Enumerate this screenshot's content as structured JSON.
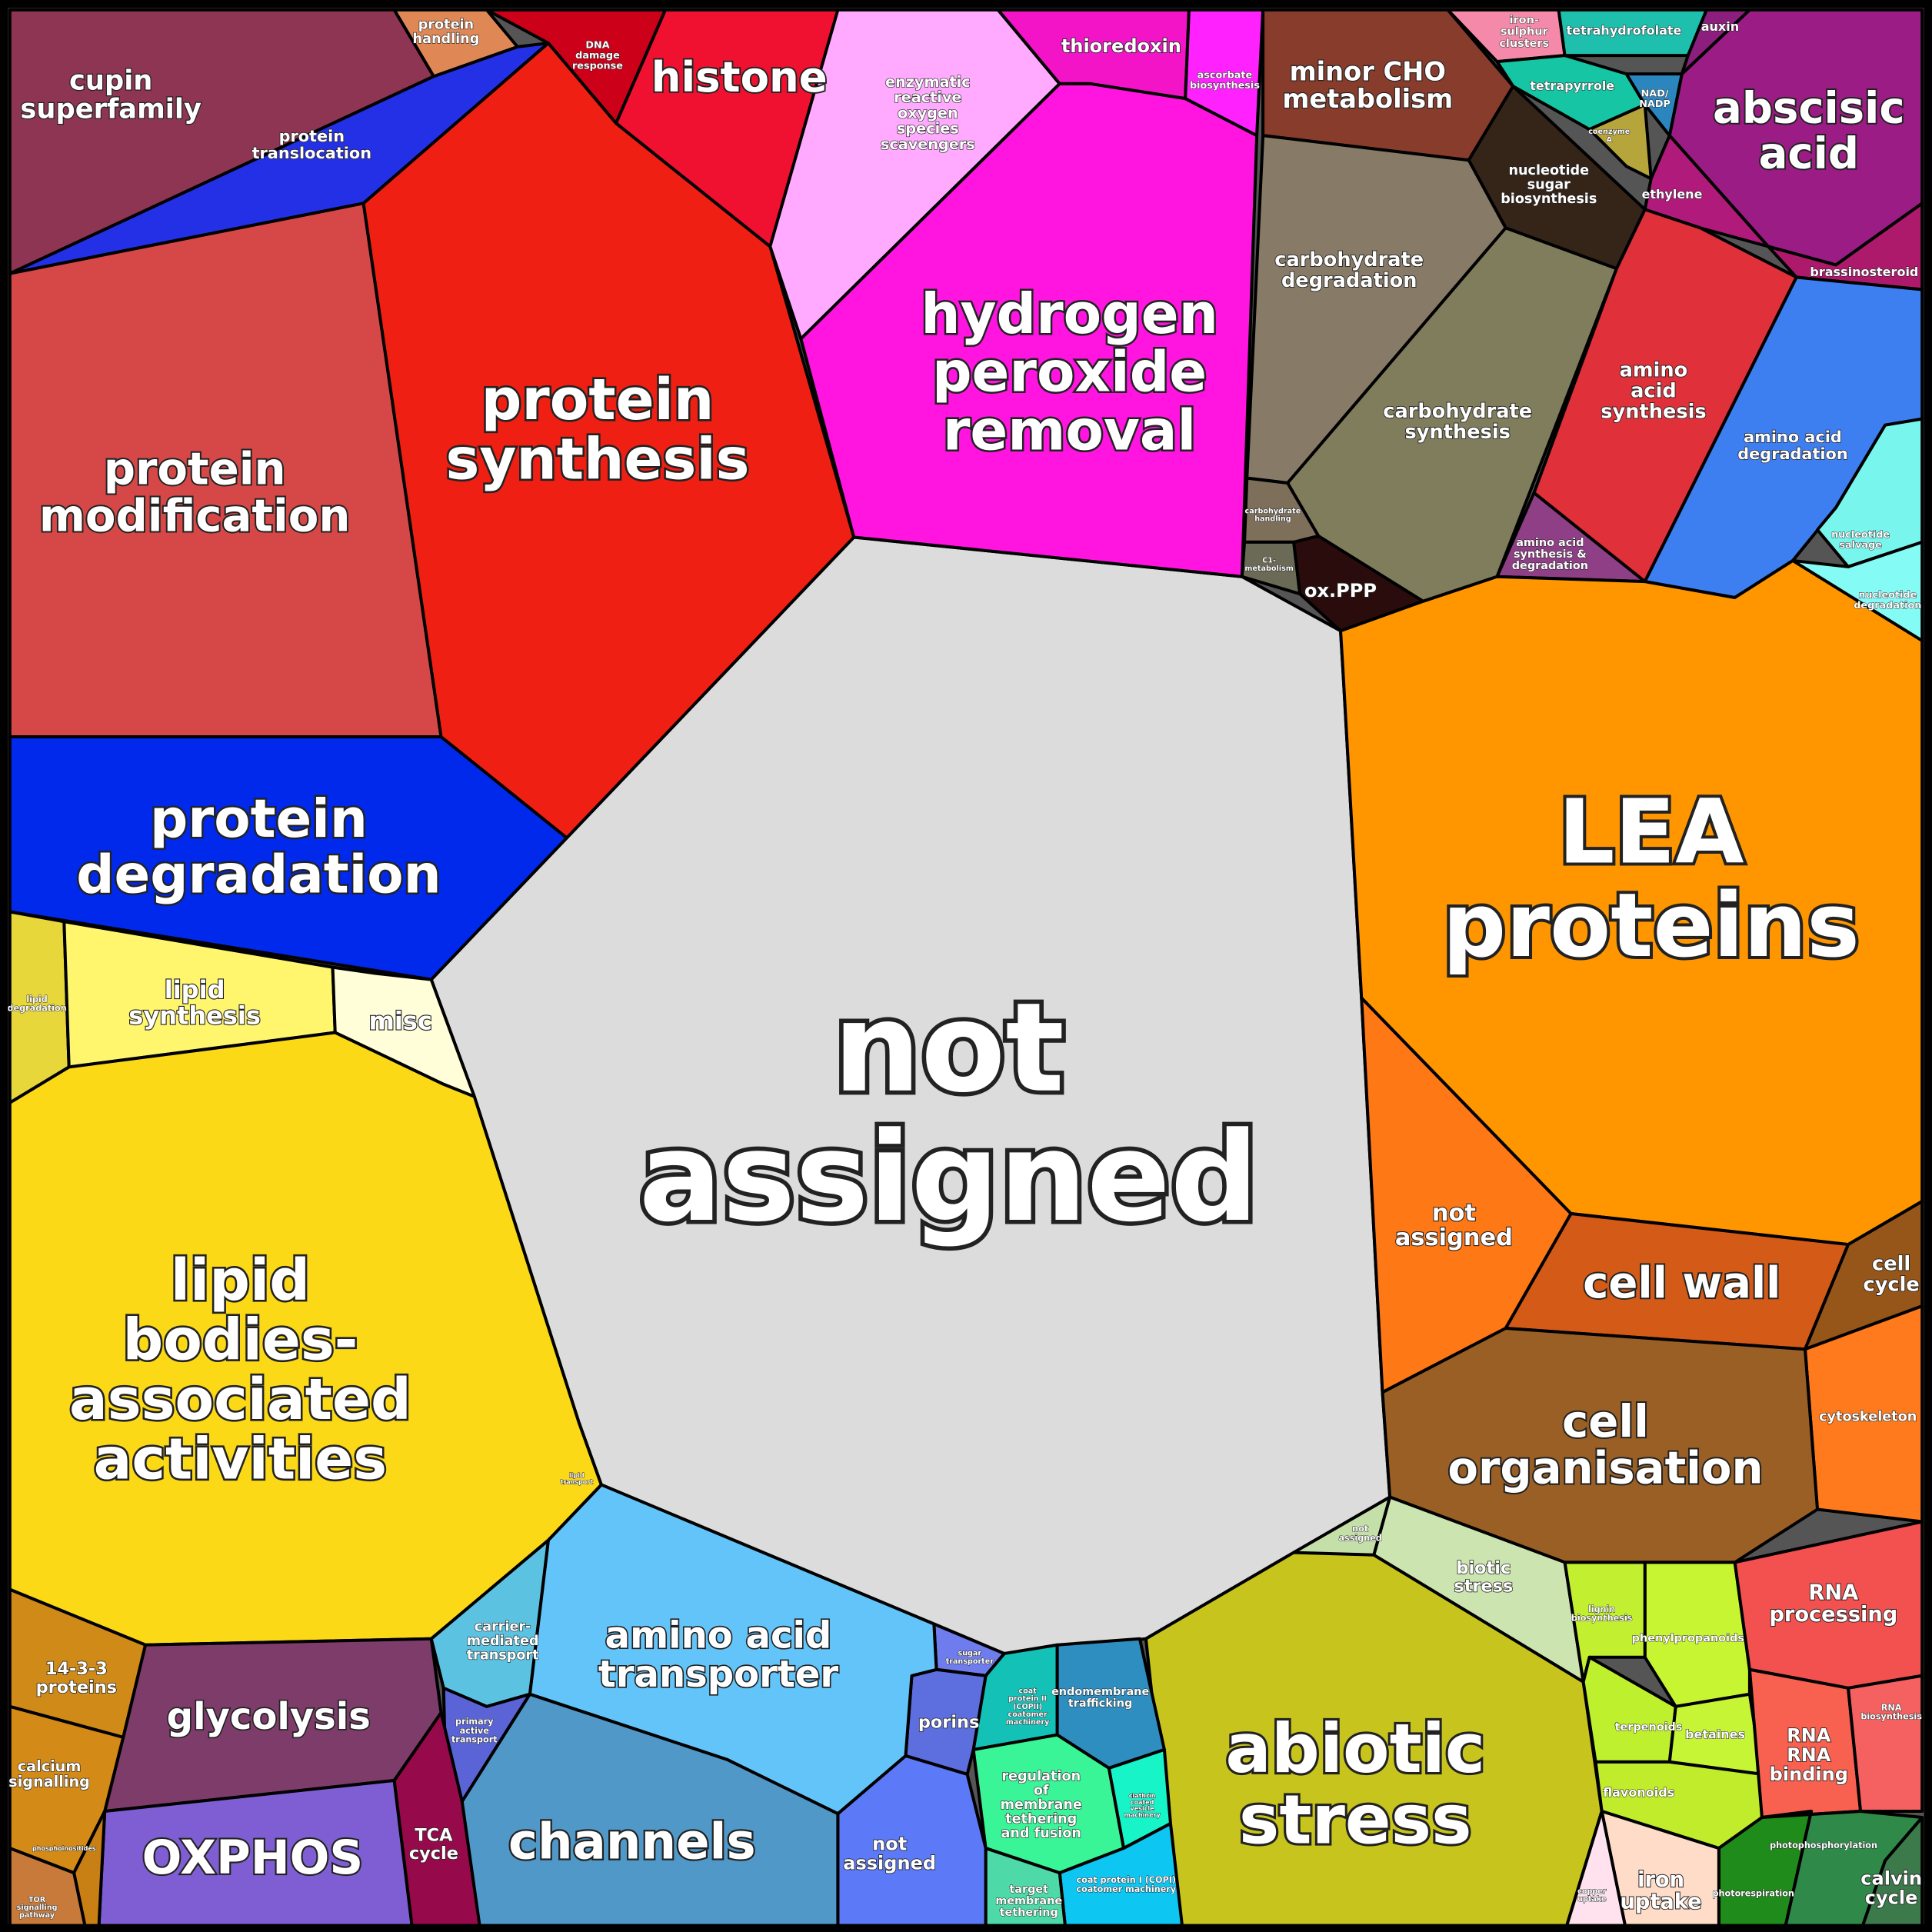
{
  "cells": [
    {
      "label": "not\nassigned",
      "color": "#dcdcdc"
    },
    {
      "label": "cupin\nsuperfamily",
      "color": "#8e3553"
    },
    {
      "label": "protein\nhandling",
      "color": "#e08855"
    },
    {
      "label": "protein\ntranslocation",
      "color": "#2430e6"
    },
    {
      "label": "protein\nmodification",
      "color": "#d64848"
    },
    {
      "label": "protein\nsynthesis",
      "color": "#f01f14"
    },
    {
      "label": "DNA\ndamage\nresponse",
      "color": "#cc0018"
    },
    {
      "label": "histone",
      "color": "#f01030"
    },
    {
      "label": "enzymatic\nreactive\noxygen\nspecies\nscavengers",
      "color": "#ffaaff"
    },
    {
      "label": "thioredoxin",
      "color": "#f314c8"
    },
    {
      "label": "ascorbate\nbiosynthesis",
      "color": "#ff22ff"
    },
    {
      "label": "hydrogen\nperoxide\nremoval",
      "color": "#ff14e0"
    },
    {
      "label": "minor CHO\nmetabolism",
      "color": "#883c2c"
    },
    {
      "label": "nucleotide\nsugar\nbiosynthesis",
      "color": "#352519"
    },
    {
      "label": "carbohydrate\ndegradation",
      "color": "#877b67"
    },
    {
      "label": "carbohydrate\nsynthesis",
      "color": "#807d5d"
    },
    {
      "label": "carbohydrate\nhandling",
      "color": "#7d6f5a"
    },
    {
      "label": "C1-\nmetabolism",
      "color": "#6b6a56"
    },
    {
      "label": "ox.PPP",
      "color": "#2a0c0c"
    },
    {
      "label": "abscisic\nacid",
      "color": "#9b1c84"
    },
    {
      "label": "iron-\nsulphur\nclusters",
      "color": "#f589a9"
    },
    {
      "label": "tetrahydrofolate",
      "color": "#1fbfae"
    },
    {
      "label": "tetrapyrrole",
      "color": "#16c5a3"
    },
    {
      "label": "NAD/\nNADP",
      "color": "#2b86c0"
    },
    {
      "label": "coenzyme\nA",
      "color": "#b6a53a"
    },
    {
      "label": "auxin",
      "color": "#8c1e7e"
    },
    {
      "label": "ethylene",
      "color": "#b01b7b"
    },
    {
      "label": "brassinosteroid",
      "color": "#ad1a6c"
    },
    {
      "label": "amino\nacid\nsynthesis",
      "color": "#e0303a"
    },
    {
      "label": "amino acid\nsynthesis &\ndegradation",
      "color": "#8e3f86"
    },
    {
      "label": "amino acid\ndegradation",
      "color": "#3d7ff0"
    },
    {
      "label": "nucleotide\nsalvage",
      "color": "#78f6ee"
    },
    {
      "label": "nucleotide\ndegradation",
      "color": "#85fbf5"
    },
    {
      "label": "LEA\nproteins",
      "color": "#ff9600"
    },
    {
      "label": "not\nassigned",
      "color": "#ff7816"
    },
    {
      "label": "cell wall",
      "color": "#d45a18"
    },
    {
      "label": "cell\ncycle",
      "color": "#96561a"
    },
    {
      "label": "cytoskeleton",
      "color": "#ff7a1c"
    },
    {
      "label": "cell\norganisation",
      "color": "#9a5f25"
    },
    {
      "label": "biotic\nstress",
      "color": "#cce5b0"
    },
    {
      "label": "not\nassigned",
      "color": "#c4e0a8"
    },
    {
      "label": "abiotic\nstress",
      "color": "#c8c41e"
    },
    {
      "label": "phenylpropanoids",
      "color": "#c8f532"
    },
    {
      "label": "lignin\nbiosynthesis",
      "color": "#c2ef30"
    },
    {
      "label": "terpenoids",
      "color": "#bff02e"
    },
    {
      "label": "betaines",
      "color": "#c6f536"
    },
    {
      "label": "flavonoids",
      "color": "#c0ec2c"
    },
    {
      "label": "RNA\nprocessing",
      "color": "#f35050"
    },
    {
      "label": "RNA\nRNA\nbinding",
      "color": "#f86050"
    },
    {
      "label": "RNA\nbiosynthesis",
      "color": "#f56060"
    },
    {
      "label": "photorespiration",
      "color": "#1f8b1a"
    },
    {
      "label": "photophosphorylation",
      "color": "#2f8a4a"
    },
    {
      "label": "calvin\ncycle",
      "color": "#3c7a4c"
    },
    {
      "label": "iron\nuptake",
      "color": "#ffdcc8"
    },
    {
      "label": "copper\nuptake",
      "color": "#ffe2ee"
    },
    {
      "label": "endomembrane\ntrafficking",
      "color": "#2e8ec0"
    },
    {
      "label": "coat\nprotein II\n(COPII)\ncoatomer\nmachinery",
      "color": "#13c1b7"
    },
    {
      "label": "regulation\nof\nmembrane\ntethering\nand fusion",
      "color": "#3af597"
    },
    {
      "label": "clathrin\ncoated\nvesicle\nmachinery",
      "color": "#17f4c8"
    },
    {
      "label": "coat protein I (COPI)\ncoatomer machinery",
      "color": "#0ec6f2"
    },
    {
      "label": "target\nmembrane\ntethering",
      "color": "#4ed9a8"
    },
    {
      "label": "sugar\ntransporter",
      "color": "#6f7cee"
    },
    {
      "label": "porins",
      "color": "#5d6fde"
    },
    {
      "label": "not\nassigned",
      "color": "#5c7af8"
    },
    {
      "label": "amino acid\ntransporter",
      "color": "#63c4f9"
    },
    {
      "label": "channels",
      "color": "#4f98c8"
    },
    {
      "label": "carrier-\nmediated\ntransport",
      "color": "#5bc3e1"
    },
    {
      "label": "primary\nactive\ntransport",
      "color": "#5a64d6"
    },
    {
      "label": "lipid\ntransport",
      "color": "#fcf8b4"
    },
    {
      "label": "protein\ndegradation",
      "color": "#0029ec"
    },
    {
      "label": "lipid\ndegradation",
      "color": "#e8d73a"
    },
    {
      "label": "lipid\nsynthesis",
      "color": "#fff66e"
    },
    {
      "label": "misc",
      "color": "#fffed8"
    },
    {
      "label": "lipid\nbodies-\nassociated\nactivities",
      "color": "#fbd917"
    },
    {
      "label": "glycolysis",
      "color": "#7e3c6b"
    },
    {
      "label": "OXPHOS",
      "color": "#7e5ed2"
    },
    {
      "label": "TCA\ncycle",
      "color": "#96094a"
    },
    {
      "label": "14-3-3\nproteins",
      "color": "#d08a18"
    },
    {
      "label": "calcium\nsignalling",
      "color": "#d38a16"
    },
    {
      "label": "phosphoinositides",
      "color": "#c88014"
    },
    {
      "label": "TOR\nsignalling\npathway",
      "color": "#c87a3a"
    }
  ]
}
